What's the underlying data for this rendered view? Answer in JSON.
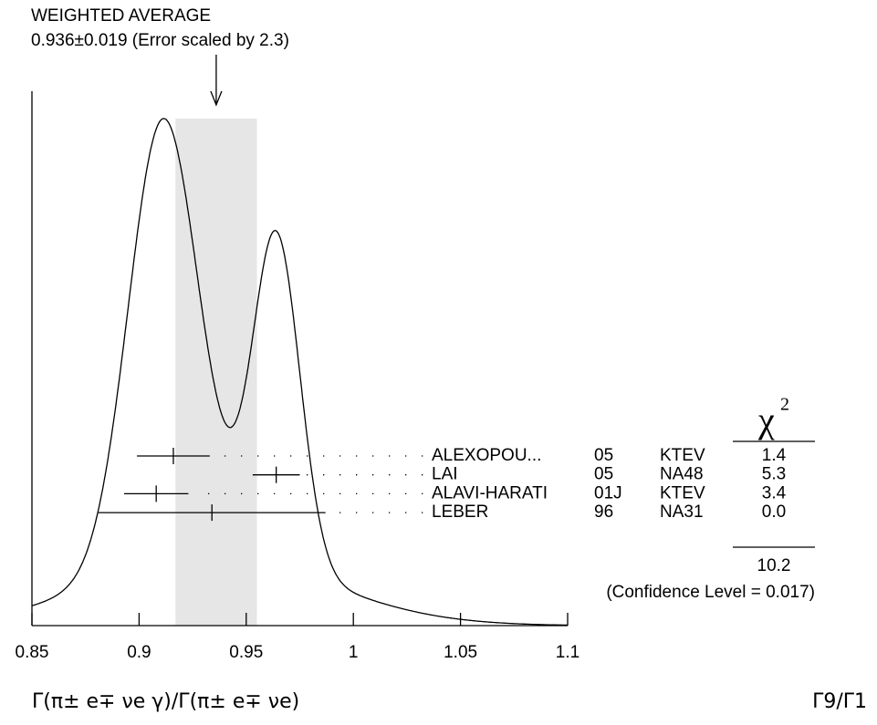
{
  "chart_data": {
    "type": "ideogram",
    "title": "WEIGHTED AVERAGE",
    "subtitle": "0.936±0.019 (Error scaled by 2.3)",
    "weighted_average": {
      "value": 0.936,
      "error": 0.019
    },
    "measurements": [
      {
        "author": "ALEXOPOU...",
        "year": "05",
        "experiment": "KTEV",
        "value": 0.916,
        "error": 0.017,
        "chi2": 1.4
      },
      {
        "author": "LAI",
        "year": "05",
        "experiment": "NA48",
        "value": 0.964,
        "error": 0.011,
        "chi2": 5.3
      },
      {
        "author": "ALAVI-HARATI",
        "year": "01J",
        "experiment": "KTEV",
        "value": 0.908,
        "error": 0.015,
        "chi2": 3.4
      },
      {
        "author": "LEBER",
        "year": "96",
        "experiment": "NA31",
        "value": 0.934,
        "error": 0.053,
        "chi2": 0,
        "chi2_label": "0.0"
      }
    ],
    "chi2_header": "χ",
    "chi2_header_power": "2",
    "chi2_total": 10.2,
    "confidence_level": "(Confidence Level = 0.017)",
    "xlim": [
      0.85,
      1.1
    ],
    "xticks": [
      0.85,
      0.9,
      0.95,
      1,
      1.05,
      1.1
    ],
    "x_label": "Γ(π± e∓ νe γ)/Γ(π± e∓ νe)",
    "ratio_label": "Γ9/Γ1",
    "band_color": "#e6e6e6"
  }
}
